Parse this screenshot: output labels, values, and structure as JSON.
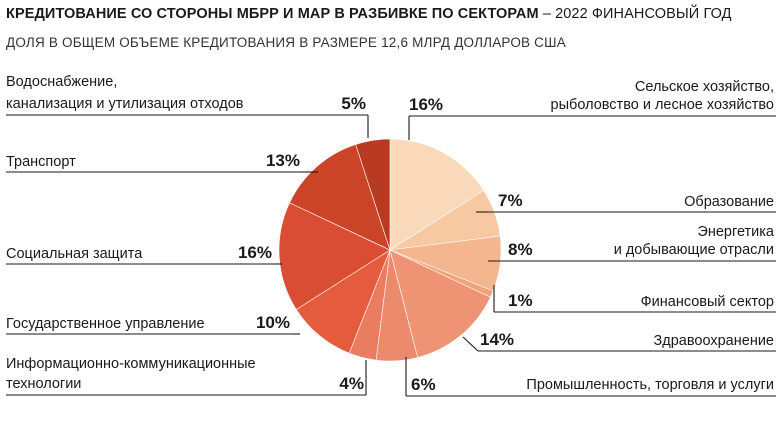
{
  "header": {
    "title_bold": "КРЕДИТОВАНИЕ СО СТОРОНЫ МБРР И МАР В РАЗБИВКЕ ПО СЕКТОРАМ",
    "title_rest": " – 2022 ФИНАНСОВЫЙ ГОД",
    "subtitle": "ДОЛЯ В ОБЩЕМ ОБЪЕМЕ КРЕДИТОВАНИЯ В РАЗМЕРЕ 12,6 МЛРД ДОЛЛАРОВ США"
  },
  "chart_data": {
    "type": "pie",
    "start": "12 o'clock, clockwise",
    "slices": [
      {
        "label_lines": [
          "Сельское хозяйство,",
          "рыболовство и лесное хозяйство"
        ],
        "value": 16,
        "pct_text": "16%",
        "color": "#f9d9b9"
      },
      {
        "label_lines": [
          "Образование"
        ],
        "value": 7,
        "pct_text": "7%",
        "color": "#f6c9a3"
      },
      {
        "label_lines": [
          "Энергетика",
          "и добывающие отрасли"
        ],
        "value": 8,
        "pct_text": "8%",
        "color": "#f3b68e"
      },
      {
        "label_lines": [
          "Финансовый сектор"
        ],
        "value": 1,
        "pct_text": "1%",
        "color": "#f1a57b"
      },
      {
        "label_lines": [
          "Здравоохранение"
        ],
        "value": 14,
        "pct_text": "14%",
        "color": "#ee9373"
      },
      {
        "label_lines": [
          "Промышленность, торговля и услуги"
        ],
        "value": 6,
        "pct_text": "6%",
        "color": "#ec8a6d"
      },
      {
        "label_lines": [
          "Информационно-коммуникационные",
          "технологии"
        ],
        "value": 4,
        "pct_text": "4%",
        "color": "#ea7c60"
      },
      {
        "label_lines": [
          "Государственное управление"
        ],
        "value": 10,
        "pct_text": "10%",
        "color": "#e55b3e"
      },
      {
        "label_lines": [
          "Социальная защита"
        ],
        "value": 16,
        "pct_text": "16%",
        "color": "#d94d35"
      },
      {
        "label_lines": [
          "Транспорт"
        ],
        "value": 13,
        "pct_text": "13%",
        "color": "#cc4428"
      },
      {
        "label_lines": [
          "Водоснабжение,",
          "канализация и утилизация отходов"
        ],
        "value": 5,
        "pct_text": "5%",
        "color": "#b93a22"
      }
    ]
  }
}
